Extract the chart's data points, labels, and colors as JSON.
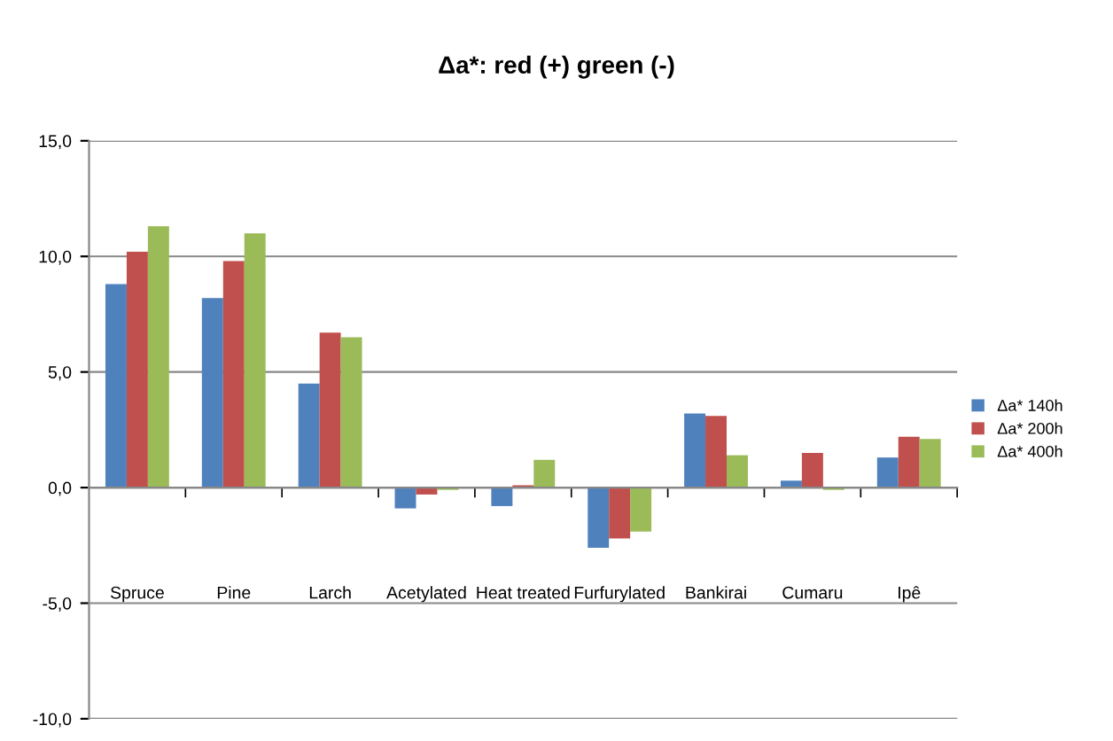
{
  "chart_data": {
    "type": "bar",
    "title": "Δa*: red (+) green (-)",
    "categories": [
      "Spruce",
      "Pine",
      "Larch",
      "Acetylated",
      "Heat treated",
      "Furfurylated",
      "Bankirai",
      "Cumaru",
      "Ipê"
    ],
    "series": [
      {
        "name": "Δa* 140h",
        "color": "#4f81bd",
        "values": [
          8.8,
          8.2,
          4.5,
          -0.9,
          -0.8,
          -2.6,
          3.2,
          0.3,
          1.3
        ]
      },
      {
        "name": "Δa* 200h",
        "color": "#c0504d",
        "values": [
          10.2,
          9.8,
          6.7,
          -0.3,
          0.1,
          -2.2,
          3.1,
          1.5,
          2.2
        ]
      },
      {
        "name": "Δa* 400h",
        "color": "#9bbb59",
        "values": [
          11.3,
          11.0,
          6.5,
          -0.1,
          1.2,
          -1.9,
          1.4,
          -0.1,
          2.1
        ]
      }
    ],
    "ylim": [
      -10,
      15
    ],
    "yticks": [
      {
        "value": -10,
        "label": "-10,0"
      },
      {
        "value": -5,
        "label": "-5,0"
      },
      {
        "value": 0,
        "label": "0,0"
      },
      {
        "value": 5,
        "label": "5,0"
      },
      {
        "value": 10,
        "label": "10,0"
      },
      {
        "value": 15,
        "label": "15,0"
      }
    ],
    "grid": "y",
    "legend": "right"
  }
}
